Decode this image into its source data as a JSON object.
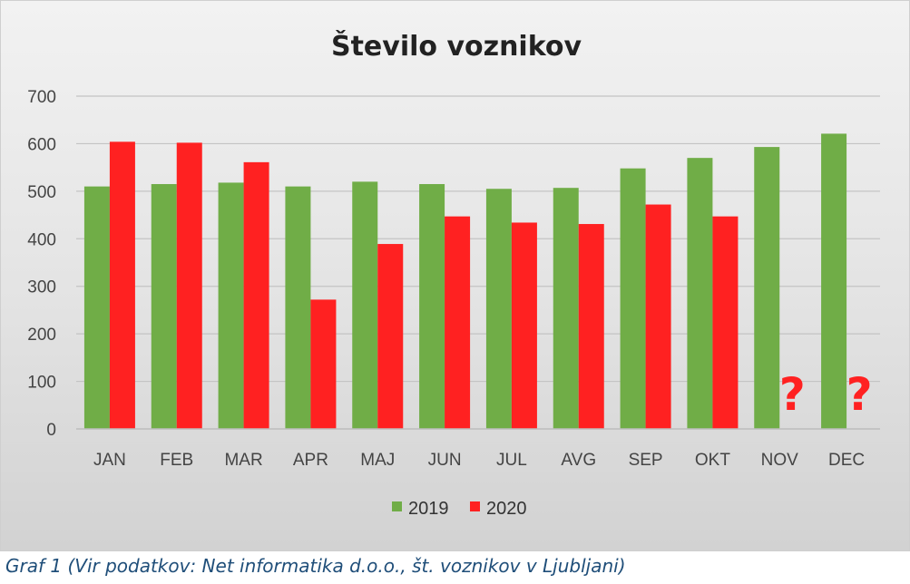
{
  "chart_data": {
    "type": "bar",
    "title": "Število voznikov",
    "xlabel": "",
    "ylabel": "",
    "ylim": [
      0,
      700
    ],
    "yticks": [
      0,
      100,
      200,
      300,
      400,
      500,
      600,
      700
    ],
    "grid": true,
    "legend_position": "bottom",
    "categories": [
      "JAN",
      "FEB",
      "MAR",
      "APR",
      "MAJ",
      "JUN",
      "JUL",
      "AVG",
      "SEP",
      "OKT",
      "NOV",
      "DEC"
    ],
    "series": [
      {
        "name": "2019",
        "color": "#70ad47",
        "values": [
          510,
          515,
          518,
          510,
          520,
          515,
          505,
          507,
          548,
          570,
          593,
          621
        ]
      },
      {
        "name": "2020",
        "color": "#ff2121",
        "values": [
          604,
          602,
          561,
          272,
          389,
          447,
          434,
          431,
          472,
          447,
          null,
          null
        ]
      }
    ],
    "annotations": [
      {
        "category": "NOV",
        "text": "?",
        "color": "#ff2121"
      },
      {
        "category": "DEC",
        "text": "?",
        "color": "#ff2121"
      }
    ]
  },
  "caption": "Graf 1 (Vir podatkov: Net informatika d.o.o., št. voznikov v Ljubljani)"
}
